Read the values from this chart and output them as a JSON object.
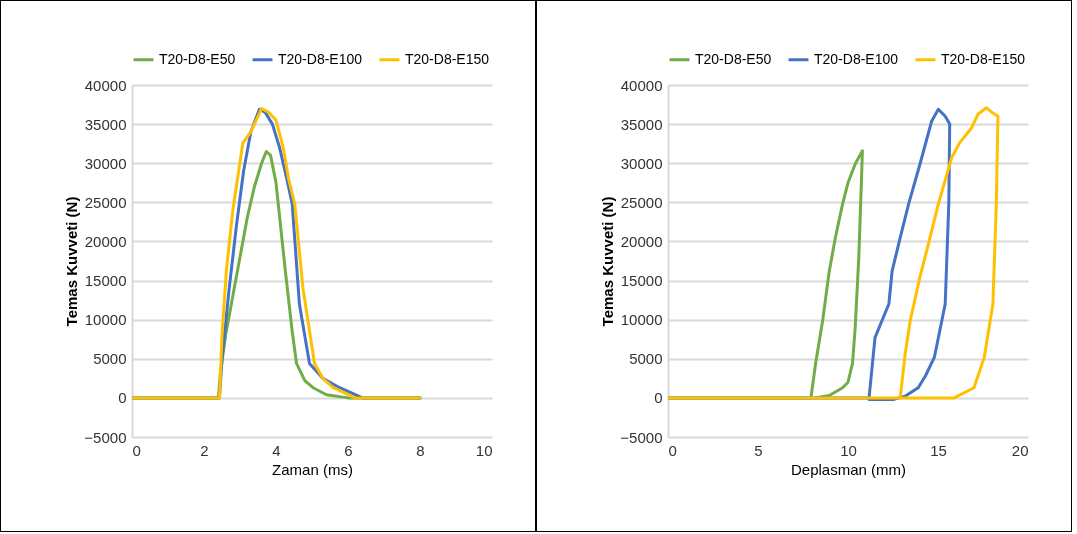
{
  "chart_data": [
    {
      "type": "line",
      "xlabel": "Zaman (ms)",
      "ylabel": "Temas Kuvveti (N)",
      "xlim": [
        0,
        10
      ],
      "xticks": [
        0,
        2,
        4,
        6,
        8,
        10
      ],
      "ylim": [
        -5000,
        40000
      ],
      "yticks": [
        -5000,
        0,
        5000,
        10000,
        15000,
        20000,
        25000,
        30000,
        35000,
        40000
      ],
      "grid": "y",
      "legend": "top",
      "line_style": "solid",
      "marker": "none",
      "series": [
        {
          "name": "T20-D8-E50",
          "color": "#70ad47",
          "x": [
            0,
            2.4,
            2.45,
            2.6,
            2.8,
            3.0,
            3.2,
            3.4,
            3.6,
            3.73,
            3.85,
            4.0,
            4.26,
            4.45,
            4.57,
            4.8,
            5.03,
            5.4,
            6.0,
            7.0,
            8.0
          ],
          "values": [
            0,
            0,
            3000,
            8000,
            13000,
            18000,
            23000,
            27000,
            30000,
            31500,
            31000,
            27500,
            16200,
            8500,
            4400,
            2200,
            1300,
            400,
            0,
            0,
            0
          ]
        },
        {
          "name": "T20-D8-E100",
          "color": "#4472c4",
          "x": [
            0,
            2.43,
            2.5,
            2.7,
            2.9,
            3.1,
            3.3,
            3.54,
            3.7,
            3.9,
            4.1,
            4.3,
            4.45,
            4.65,
            4.93,
            5.3,
            5.77,
            6.4,
            7.0,
            8.0
          ],
          "values": [
            0,
            0,
            5000,
            14000,
            22000,
            29000,
            34000,
            36900,
            36500,
            35000,
            32000,
            28000,
            24800,
            12000,
            4400,
            2500,
            1300,
            0,
            0,
            0
          ]
        },
        {
          "name": "T20-D8-E150",
          "color": "#ffc000",
          "x": [
            0,
            2.43,
            2.5,
            2.62,
            2.8,
            3.08,
            3.3,
            3.6,
            3.8,
            4.0,
            4.2,
            4.35,
            4.52,
            4.75,
            5.07,
            5.3,
            5.59,
            6.2,
            7.0,
            8.0
          ],
          "values": [
            0,
            0,
            8000,
            16200,
            24000,
            32600,
            34000,
            37000,
            36500,
            35500,
            32000,
            28000,
            24800,
            14000,
            4400,
            2500,
            1300,
            0,
            0,
            0
          ]
        }
      ]
    },
    {
      "type": "line",
      "xlabel": "Deplasman (mm)",
      "ylabel": "Temas Kuvveti (N)",
      "xlim": [
        0,
        20
      ],
      "xticks": [
        0,
        5,
        10,
        15,
        20
      ],
      "ylim": [
        -5000,
        40000
      ],
      "yticks": [
        -5000,
        0,
        5000,
        10000,
        15000,
        20000,
        25000,
        30000,
        35000,
        40000
      ],
      "grid": "y",
      "legend": "top",
      "line_style": "solid",
      "marker": "none",
      "series": [
        {
          "name": "T20-D8-E50",
          "color": "#70ad47",
          "x": [
            0,
            6,
            7.94,
            8.2,
            8.6,
            8.96,
            9.3,
            9.7,
            10.0,
            10.4,
            10.8,
            10.75,
            10.6,
            10.4,
            10.25,
            10.0,
            9.7,
            8.96,
            8.2
          ],
          "values": [
            0,
            0,
            0,
            4400,
            10000,
            16200,
            20500,
            24800,
            27500,
            29900,
            31600,
            28000,
            18000,
            9000,
            4400,
            2000,
            1300,
            300,
            0
          ]
        },
        {
          "name": "T20-D8-E100",
          "color": "#4472c4",
          "x": [
            0,
            11.17,
            11.5,
            12.0,
            12.27,
            12.45,
            12.9,
            13.37,
            14.0,
            14.65,
            15.02,
            15.4,
            15.65,
            15.6,
            15.4,
            14.8,
            14.3,
            13.9,
            13.17,
            12.5,
            11.17
          ],
          "values": [
            0,
            0,
            7700,
            10500,
            12000,
            16200,
            20500,
            24800,
            29900,
            35400,
            36900,
            36000,
            35000,
            24800,
            12000,
            5200,
            2800,
            1300,
            200,
            -200,
            -200
          ]
        },
        {
          "name": "T20-D8-E150",
          "color": "#ffc000",
          "x": [
            0,
            12.9,
            13.17,
            13.45,
            14.0,
            14.47,
            15.02,
            15.76,
            16.2,
            16.86,
            17.23,
            17.69,
            18.0,
            18.33,
            18.24,
            18.05,
            17.57,
            17.0,
            15.9,
            14.0,
            12.9
          ],
          "values": [
            0,
            0,
            5500,
            9800,
            15500,
            19700,
            24800,
            30700,
            32600,
            34500,
            36300,
            37100,
            36500,
            36000,
            24800,
            12000,
            5200,
            1300,
            0,
            0,
            0
          ]
        }
      ]
    }
  ]
}
